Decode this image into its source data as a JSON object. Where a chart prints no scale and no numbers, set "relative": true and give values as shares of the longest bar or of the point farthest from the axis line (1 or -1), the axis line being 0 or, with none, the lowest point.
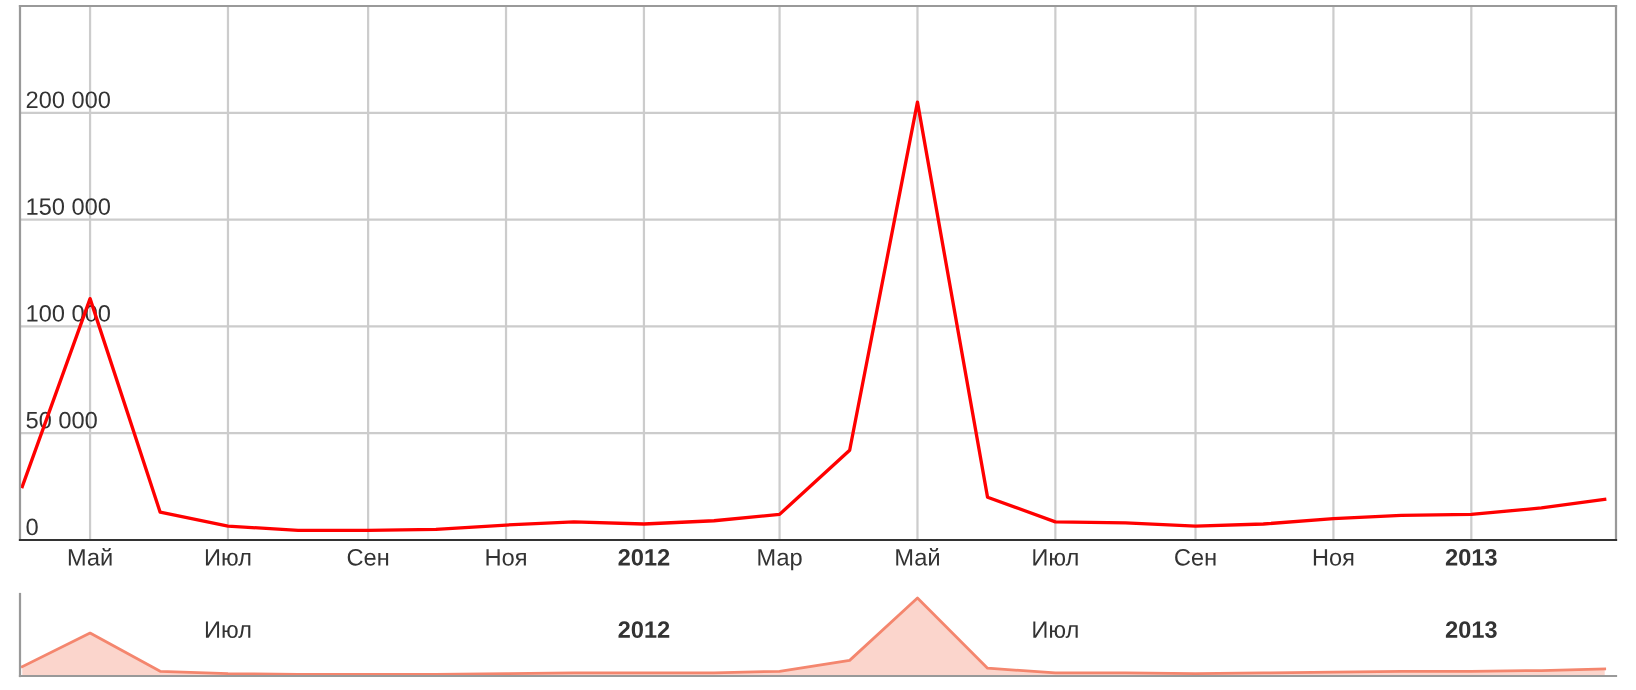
{
  "chart_data": [
    {
      "type": "line",
      "x": [
        "2011-04",
        "2011-05",
        "2011-06",
        "2011-07",
        "2011-08",
        "2011-09",
        "2011-10",
        "2011-11",
        "2011-12",
        "2012-01",
        "2012-02",
        "2012-03",
        "2012-04",
        "2012-05",
        "2012-06",
        "2012-07",
        "2012-08",
        "2012-09",
        "2012-10",
        "2012-11",
        "2012-12",
        "2013-01",
        "2013-02",
        "2013-03"
      ],
      "series": [
        {
          "color": "#ff0000",
          "values": [
            25000,
            113000,
            13000,
            6500,
            4500,
            4500,
            5000,
            7000,
            8500,
            7500,
            9000,
            12000,
            42000,
            205000,
            20000,
            8500,
            8000,
            6500,
            7500,
            10000,
            11500,
            12000,
            15000,
            19000
          ]
        }
      ],
      "xlim": [
        "2011-03-31",
        "2013-03-06"
      ],
      "ylim": [
        0,
        250000
      ],
      "yticks": [
        {
          "value": 0,
          "label": "0"
        },
        {
          "value": 50000,
          "label": "50 000"
        },
        {
          "value": 100000,
          "label": "100 000"
        },
        {
          "value": 150000,
          "label": "150 000"
        },
        {
          "value": 200000,
          "label": "200 000"
        }
      ],
      "xticks": [
        {
          "value": "2011-05",
          "label": "Май"
        },
        {
          "value": "2011-07",
          "label": "Июл"
        },
        {
          "value": "2011-09",
          "label": "Сен"
        },
        {
          "value": "2011-11",
          "label": "Ноя"
        },
        {
          "value": "2012-01",
          "label": "2012"
        },
        {
          "value": "2012-03",
          "label": "Мар"
        },
        {
          "value": "2012-05",
          "label": "Май"
        },
        {
          "value": "2012-07",
          "label": "Июл"
        },
        {
          "value": "2012-09",
          "label": "Сен"
        },
        {
          "value": "2012-11",
          "label": "Ноя"
        },
        {
          "value": "2013-01",
          "label": "2013"
        }
      ],
      "grid": true,
      "marker": "none",
      "line_style": "solid"
    },
    {
      "type": "area",
      "relative": true,
      "x": [
        "2011-04",
        "2011-05",
        "2011-06",
        "2011-07",
        "2011-08",
        "2011-09",
        "2011-10",
        "2011-11",
        "2011-12",
        "2012-01",
        "2012-02",
        "2012-03",
        "2012-04",
        "2012-05",
        "2012-06",
        "2012-07",
        "2012-08",
        "2012-09",
        "2012-10",
        "2012-11",
        "2012-12",
        "2013-01",
        "2013-02",
        "2013-03"
      ],
      "series": [
        {
          "color": "#f4866e",
          "values": [
            0.12,
            0.55,
            0.06,
            0.03,
            0.02,
            0.02,
            0.02,
            0.03,
            0.04,
            0.04,
            0.04,
            0.06,
            0.2,
            1,
            0.1,
            0.04,
            0.04,
            0.03,
            0.04,
            0.05,
            0.06,
            0.06,
            0.07,
            0.09
          ]
        }
      ],
      "xlim": [
        "2011-03-31",
        "2013-03-06"
      ],
      "xticks": [
        {
          "value": "2011-07",
          "label": "Июл"
        },
        {
          "value": "2012-01",
          "label": "2012"
        },
        {
          "value": "2012-07",
          "label": "Июл"
        },
        {
          "value": "2013-01",
          "label": "2013"
        }
      ],
      "tick_labels": "x",
      "grid": false
    }
  ]
}
